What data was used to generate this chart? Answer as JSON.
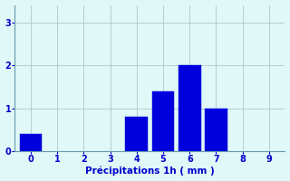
{
  "bar_positions": [
    0,
    4,
    5,
    6,
    7
  ],
  "bar_heights": [
    0.4,
    0.8,
    1.4,
    2.0,
    1.0
  ],
  "bar_color": "#0000dd",
  "bar_edge_color": "#0000dd",
  "bar_width": 0.85,
  "xlim": [
    -0.6,
    9.6
  ],
  "ylim": [
    0,
    3.4
  ],
  "xticks": [
    0,
    1,
    2,
    3,
    4,
    5,
    6,
    7,
    8,
    9
  ],
  "yticks": [
    0,
    1,
    2,
    3
  ],
  "xlabel": "Précipitations 1h ( mm )",
  "xlabel_color": "#0000cc",
  "xlabel_fontsize": 7.5,
  "xlabel_fontweight": "bold",
  "tick_color": "#0000cc",
  "tick_fontsize": 7,
  "background_color": "#e0f8f8",
  "grid_color": "#b0c8c8",
  "grid_linewidth": 0.6,
  "spine_color": "#6699aa",
  "spine_linewidth": 0.8,
  "bar_linewidth": 0.3
}
